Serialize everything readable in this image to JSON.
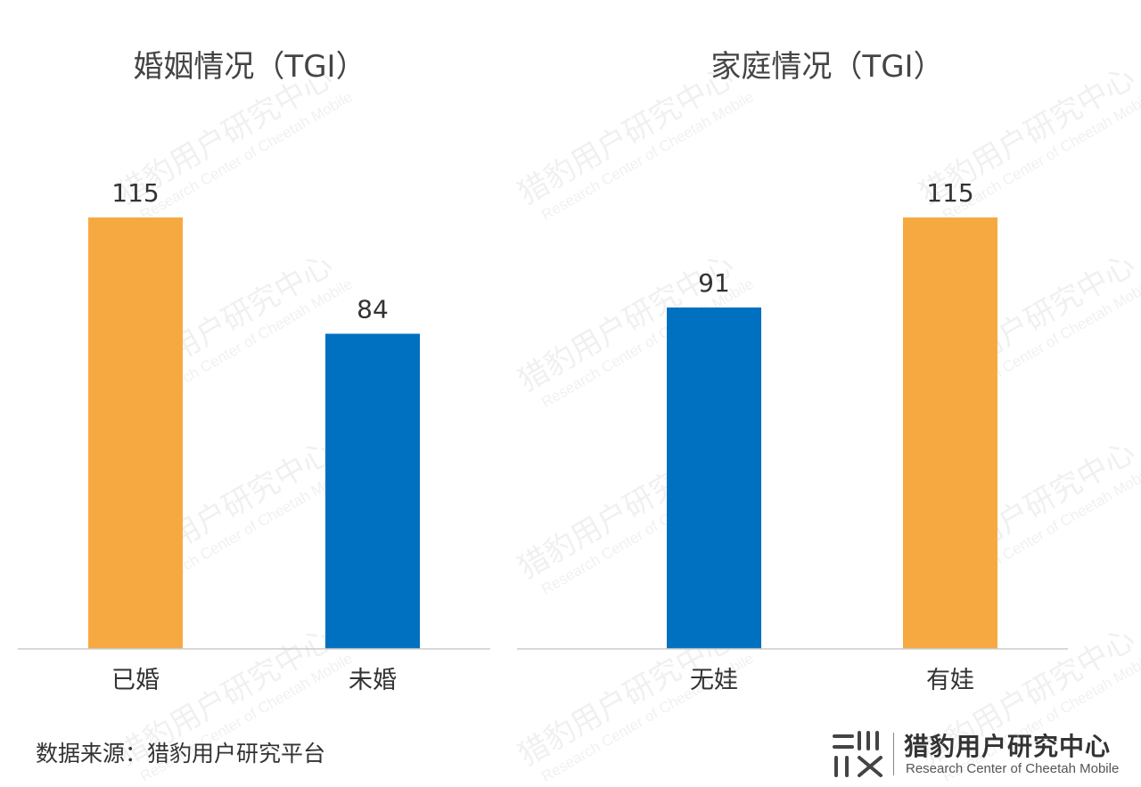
{
  "chart_data": [
    {
      "type": "bar",
      "title": "婚姻情况（TGI）",
      "categories": [
        "已婚",
        "未婚"
      ],
      "values": [
        115,
        84
      ],
      "colors": [
        "#F7A941",
        "#0070C0"
      ],
      "ylim": [
        0,
        115
      ],
      "grid": false
    },
    {
      "type": "bar",
      "title": "家庭情况（TGI）",
      "categories": [
        "无娃",
        "有娃"
      ],
      "values": [
        91,
        115
      ],
      "colors": [
        "#0070C0",
        "#F7A941"
      ],
      "ylim": [
        0,
        115
      ],
      "grid": false
    }
  ],
  "footer": {
    "source": "数据来源：猎豹用户研究平台"
  },
  "logo": {
    "name": "猎豹用户研究中心",
    "subtitle": "Research Center of Cheetah Mobile"
  },
  "watermark": {
    "name": "猎豹用户研究中心",
    "subtitle": "Research Center of Cheetah Mobile"
  },
  "colors": {
    "orange": "#F7A941",
    "blue": "#0070C0",
    "axis": "#CCCCCC"
  }
}
